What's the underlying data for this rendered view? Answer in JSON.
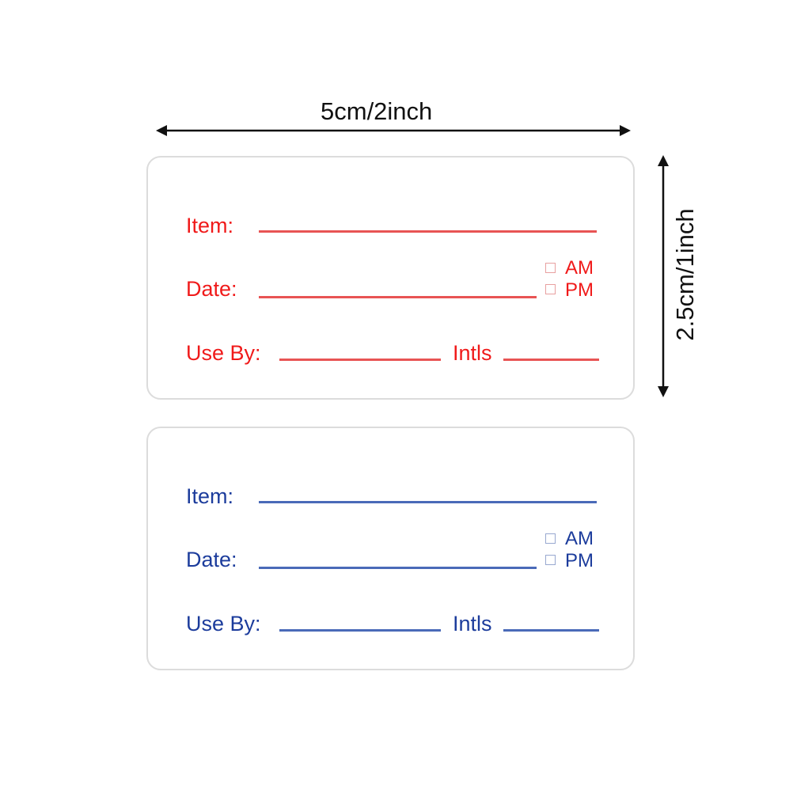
{
  "dimensions": {
    "width_label": "5cm/2inch",
    "height_label": "2.5cm/1inch"
  },
  "labels": [
    {
      "color": "#f01a1a",
      "line_color": "#e85454",
      "box_color": "#e8a0a0",
      "item": "Item:",
      "date": "Date:",
      "use_by": "Use By:",
      "intls": "Intls",
      "am": "AM",
      "pm": "PM"
    },
    {
      "color": "#1c3c9c",
      "line_color": "#4a6ab8",
      "box_color": "#98a8d0",
      "item": "Item:",
      "date": "Date:",
      "use_by": "Use By:",
      "intls": "Intls",
      "am": "AM",
      "pm": "PM"
    }
  ]
}
